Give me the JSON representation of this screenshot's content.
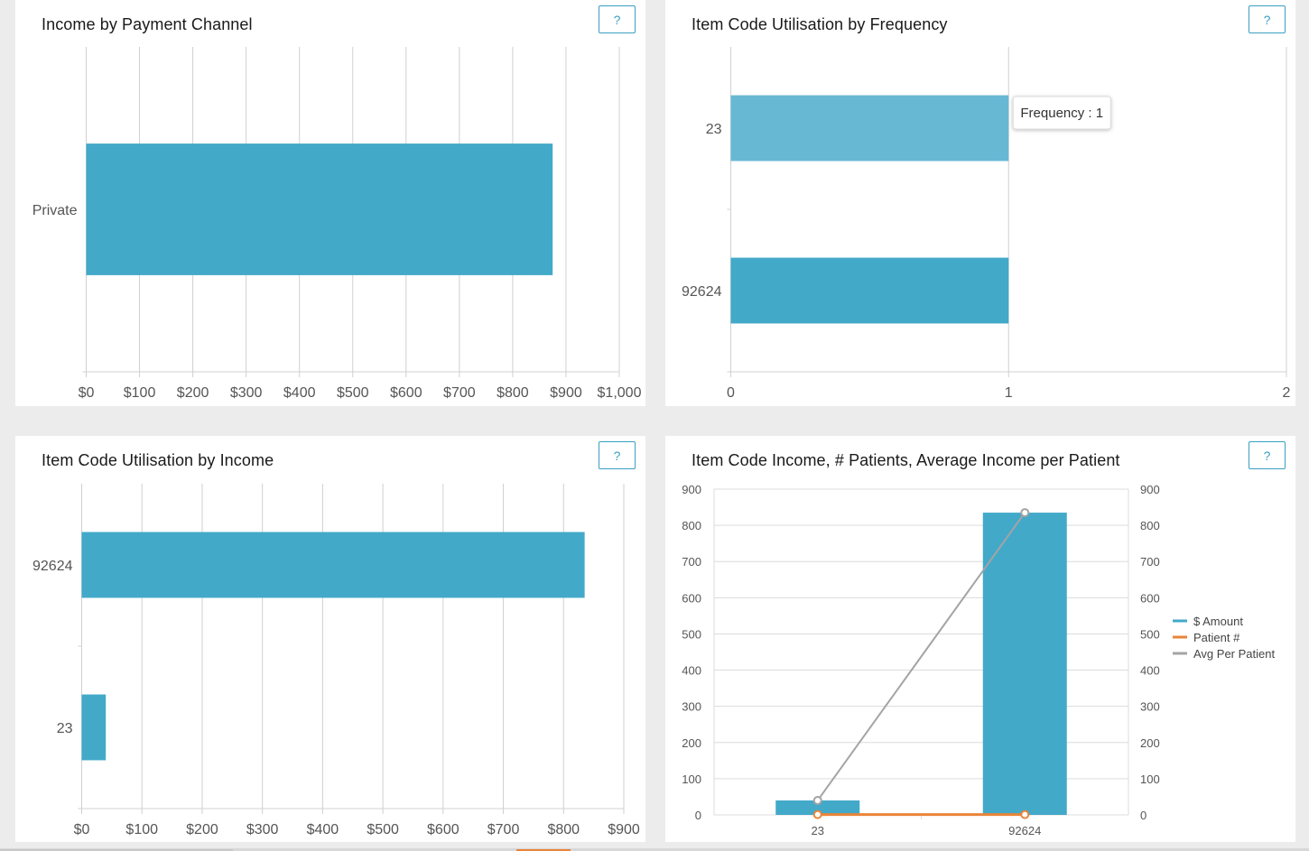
{
  "colors": {
    "bar": "#42a9c9",
    "bar_hover": "#67b9d3",
    "grid": "#d0d0d0",
    "axis_text": "#555555",
    "patients_line": "#ea8438",
    "avg_line": "#a4a4a4"
  },
  "help_label": "?",
  "chart_data": [
    {
      "id": "income-by-payment-channel",
      "type": "bar",
      "orientation": "horizontal",
      "title": "Income by Payment Channel",
      "categories": [
        "Private"
      ],
      "values": [
        875
      ],
      "xlim": [
        0,
        1000
      ],
      "x_ticks": [
        0,
        100,
        200,
        300,
        400,
        500,
        600,
        700,
        800,
        900,
        1000
      ],
      "x_tick_labels": [
        "$0",
        "$100",
        "$200",
        "$300",
        "$400",
        "$500",
        "$600",
        "$700",
        "$800",
        "$900",
        "$1,000"
      ]
    },
    {
      "id": "item-code-utilisation-by-frequency",
      "type": "bar",
      "orientation": "horizontal",
      "title": "Item Code Utilisation by Frequency",
      "categories": [
        "23",
        "92624"
      ],
      "values": [
        1,
        1
      ],
      "highlighted_index": 0,
      "xlim": [
        0,
        2
      ],
      "x_ticks": [
        0,
        1,
        2
      ],
      "x_tick_labels": [
        "0",
        "1",
        "2"
      ],
      "tooltip": "Frequency : 1"
    },
    {
      "id": "item-code-utilisation-by-income",
      "type": "bar",
      "orientation": "horizontal",
      "title": "Item Code Utilisation by Income",
      "categories": [
        "92624",
        "23"
      ],
      "values": [
        835,
        40
      ],
      "xlim": [
        0,
        900
      ],
      "x_ticks": [
        0,
        100,
        200,
        300,
        400,
        500,
        600,
        700,
        800,
        900
      ],
      "x_tick_labels": [
        "$0",
        "$100",
        "$200",
        "$300",
        "$400",
        "$500",
        "$600",
        "$700",
        "$800",
        "$900"
      ]
    },
    {
      "id": "item-code-income-patients-average",
      "type": "bar",
      "title": "Item Code Income, # Patients, Average Income per Patient",
      "categories": [
        "23",
        "92624"
      ],
      "series": [
        {
          "name": "$ Amount",
          "type": "bar",
          "values": [
            40,
            835
          ]
        },
        {
          "name": "Patient #",
          "type": "line",
          "values": [
            1,
            1
          ]
        },
        {
          "name": "Avg Per Patient",
          "type": "line",
          "values": [
            40,
            835
          ]
        }
      ],
      "ylim": [
        0,
        900
      ],
      "y_ticks": [
        0,
        100,
        200,
        300,
        400,
        500,
        600,
        700,
        800,
        900
      ],
      "y_tick_labels": [
        "0",
        "100",
        "200",
        "300",
        "400",
        "500",
        "600",
        "700",
        "800",
        "900"
      ],
      "legend_position": "right"
    }
  ]
}
